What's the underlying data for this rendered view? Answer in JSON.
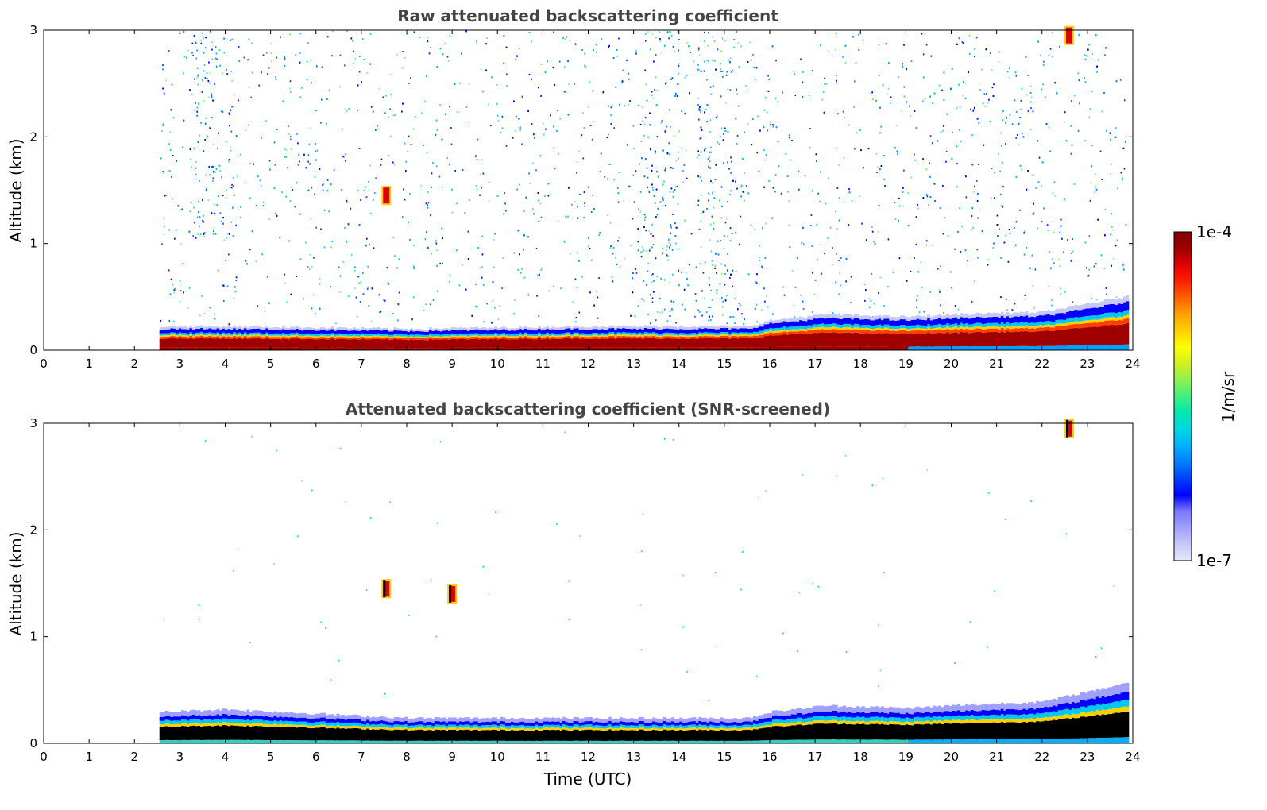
{
  "chart_data": [
    {
      "type": "heatmap",
      "title": "Raw attenuated backscattering coefficient",
      "xlabel": "",
      "ylabel": "Altitude (km)",
      "xlim": [
        0,
        24
      ],
      "ylim": [
        0,
        3
      ],
      "x_ticks": [
        "0",
        "1",
        "2",
        "3",
        "4",
        "5",
        "6",
        "7",
        "8",
        "9",
        "10",
        "11",
        "12",
        "13",
        "14",
        "15",
        "16",
        "17",
        "18",
        "19",
        "20",
        "21",
        "22",
        "23",
        "24"
      ],
      "y_ticks": [
        "0",
        "1",
        "2",
        "3"
      ],
      "data_start_time": 2.55,
      "data_end_time": 23.85,
      "boundary_layer_top_km": [
        {
          "t": 2.6,
          "h": 0.2
        },
        {
          "t": 4,
          "h": 0.2
        },
        {
          "t": 8,
          "h": 0.18
        },
        {
          "t": 12,
          "h": 0.2
        },
        {
          "t": 15.5,
          "h": 0.2
        },
        {
          "t": 16,
          "h": 0.25
        },
        {
          "t": 17.2,
          "h": 0.3
        },
        {
          "t": 19,
          "h": 0.28
        },
        {
          "t": 20,
          "h": 0.3
        },
        {
          "t": 22,
          "h": 0.32
        },
        {
          "t": 23.85,
          "h": 0.45
        }
      ],
      "features": [
        {
          "name": "cloud",
          "t": 7.55,
          "h": 1.45
        },
        {
          "name": "cloud",
          "t": 22.6,
          "h": 2.95
        },
        {
          "name": "noise-band",
          "t_start": 3.2,
          "t_end": 4.2,
          "h_start": 1.0,
          "h_end": 3.0
        },
        {
          "name": "noise-band",
          "t_start": 13.2,
          "t_end": 14.0,
          "h_start": 0.2,
          "h_end": 3.0
        },
        {
          "name": "noise-band",
          "t_start": 14.4,
          "t_end": 15.2,
          "h_start": 0.2,
          "h_end": 3.0
        }
      ]
    },
    {
      "type": "heatmap",
      "title": "Attenuated backscattering coefficient (SNR-screened)",
      "xlabel": "Time (UTC)",
      "ylabel": "Altitude (km)",
      "xlim": [
        0,
        24
      ],
      "ylim": [
        0,
        3
      ],
      "x_ticks": [
        "0",
        "1",
        "2",
        "3",
        "4",
        "5",
        "6",
        "7",
        "8",
        "9",
        "10",
        "11",
        "12",
        "13",
        "14",
        "15",
        "16",
        "17",
        "18",
        "19",
        "20",
        "21",
        "22",
        "23",
        "24"
      ],
      "y_ticks": [
        "0",
        "1",
        "2",
        "3"
      ],
      "data_start_time": 2.55,
      "data_end_time": 23.85,
      "boundary_layer_top_km": [
        {
          "t": 2.6,
          "h": 0.25
        },
        {
          "t": 4,
          "h": 0.27
        },
        {
          "t": 8,
          "h": 0.2
        },
        {
          "t": 12,
          "h": 0.2
        },
        {
          "t": 15.5,
          "h": 0.2
        },
        {
          "t": 16,
          "h": 0.25
        },
        {
          "t": 17.2,
          "h": 0.3
        },
        {
          "t": 19,
          "h": 0.28
        },
        {
          "t": 20,
          "h": 0.3
        },
        {
          "t": 22,
          "h": 0.33
        },
        {
          "t": 23.85,
          "h": 0.48
        }
      ],
      "features": [
        {
          "name": "cloud",
          "t": 7.55,
          "h": 1.45
        },
        {
          "name": "cloud",
          "t": 9.0,
          "h": 1.4
        },
        {
          "name": "cloud",
          "t": 22.6,
          "h": 2.95
        }
      ]
    }
  ],
  "colorbar": {
    "label": "1/m/sr",
    "max_label": "1e-4",
    "min_label": "1e-7",
    "colors": [
      "#e6e6fa",
      "#c8c8f5",
      "#a0a0ff",
      "#7878ff",
      "#0000ff",
      "#0040ff",
      "#0080ff",
      "#00b0ff",
      "#00d8e0",
      "#00e8b0",
      "#40f080",
      "#90f050",
      "#d0f020",
      "#ffff00",
      "#ffd000",
      "#ffa000",
      "#ff6000",
      "#ff2000",
      "#e00000",
      "#a00000",
      "#800000"
    ]
  }
}
